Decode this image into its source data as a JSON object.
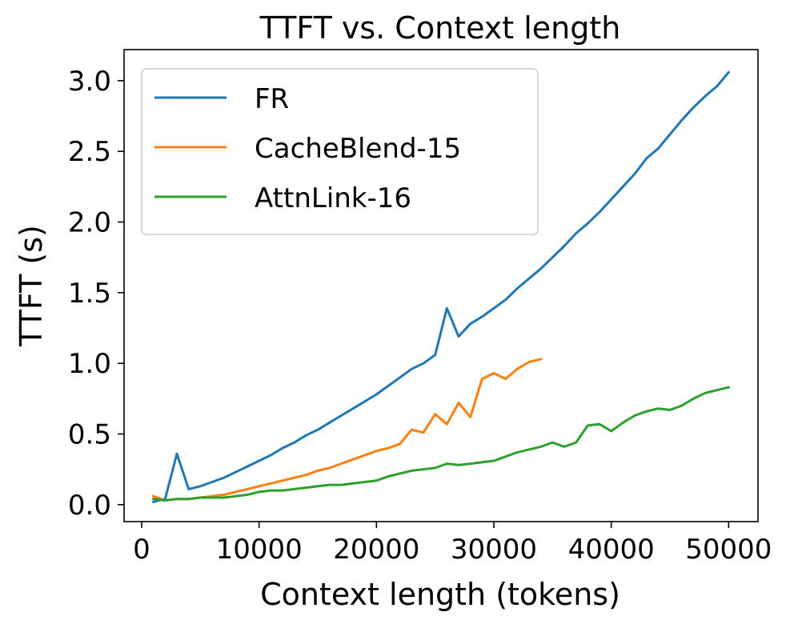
{
  "chart_data": {
    "type": "line",
    "title": "TTFT vs. Context length",
    "xlabel": "Context length (tokens)",
    "ylabel": "TTFT (s)",
    "xlim": [
      -1500,
      52500
    ],
    "ylim": [
      -0.12,
      3.22
    ],
    "xticks": [
      0,
      10000,
      20000,
      30000,
      40000,
      50000
    ],
    "xtick_labels": [
      "0",
      "10000",
      "20000",
      "30000",
      "40000",
      "50000"
    ],
    "yticks": [
      0.0,
      0.5,
      1.0,
      1.5,
      2.0,
      2.5,
      3.0
    ],
    "ytick_labels": [
      "0.0",
      "0.5",
      "1.0",
      "1.5",
      "2.0",
      "2.5",
      "3.0"
    ],
    "grid": false,
    "legend_position": "upper-left",
    "series": [
      {
        "name": "FR",
        "color": "#1f77b4",
        "points": [
          [
            1000,
            0.02
          ],
          [
            2000,
            0.04
          ],
          [
            3000,
            0.36
          ],
          [
            4000,
            0.11
          ],
          [
            5000,
            0.13
          ],
          [
            6000,
            0.16
          ],
          [
            7000,
            0.19
          ],
          [
            8000,
            0.23
          ],
          [
            9000,
            0.27
          ],
          [
            10000,
            0.31
          ],
          [
            11000,
            0.35
          ],
          [
            12000,
            0.4
          ],
          [
            13000,
            0.44
          ],
          [
            14000,
            0.49
          ],
          [
            15000,
            0.53
          ],
          [
            16000,
            0.58
          ],
          [
            17000,
            0.63
          ],
          [
            18000,
            0.68
          ],
          [
            19000,
            0.73
          ],
          [
            20000,
            0.78
          ],
          [
            21000,
            0.84
          ],
          [
            22000,
            0.9
          ],
          [
            23000,
            0.96
          ],
          [
            24000,
            1.0
          ],
          [
            25000,
            1.06
          ],
          [
            26000,
            1.39
          ],
          [
            27000,
            1.19
          ],
          [
            28000,
            1.28
          ],
          [
            29000,
            1.33
          ],
          [
            30000,
            1.39
          ],
          [
            31000,
            1.45
          ],
          [
            32000,
            1.53
          ],
          [
            33000,
            1.6
          ],
          [
            34000,
            1.67
          ],
          [
            35000,
            1.75
          ],
          [
            36000,
            1.83
          ],
          [
            37000,
            1.92
          ],
          [
            38000,
            1.99
          ],
          [
            39000,
            2.07
          ],
          [
            40000,
            2.16
          ],
          [
            41000,
            2.25
          ],
          [
            42000,
            2.34
          ],
          [
            43000,
            2.45
          ],
          [
            44000,
            2.52
          ],
          [
            45000,
            2.62
          ],
          [
            46000,
            2.72
          ],
          [
            47000,
            2.81
          ],
          [
            48000,
            2.89
          ],
          [
            49000,
            2.96
          ],
          [
            50000,
            3.06
          ]
        ]
      },
      {
        "name": "CacheBlend-15",
        "color": "#ff7f0e",
        "points": [
          [
            1000,
            0.06
          ],
          [
            2000,
            0.03
          ],
          [
            3000,
            0.04
          ],
          [
            4000,
            0.04
          ],
          [
            5000,
            0.05
          ],
          [
            6000,
            0.06
          ],
          [
            7000,
            0.07
          ],
          [
            8000,
            0.09
          ],
          [
            9000,
            0.11
          ],
          [
            10000,
            0.13
          ],
          [
            11000,
            0.15
          ],
          [
            12000,
            0.17
          ],
          [
            13000,
            0.19
          ],
          [
            14000,
            0.21
          ],
          [
            15000,
            0.24
          ],
          [
            16000,
            0.26
          ],
          [
            17000,
            0.29
          ],
          [
            18000,
            0.32
          ],
          [
            19000,
            0.35
          ],
          [
            20000,
            0.38
          ],
          [
            21000,
            0.4
          ],
          [
            22000,
            0.43
          ],
          [
            23000,
            0.53
          ],
          [
            24000,
            0.51
          ],
          [
            25000,
            0.64
          ],
          [
            26000,
            0.57
          ],
          [
            27000,
            0.72
          ],
          [
            28000,
            0.62
          ],
          [
            29000,
            0.89
          ],
          [
            30000,
            0.93
          ],
          [
            31000,
            0.89
          ],
          [
            32000,
            0.96
          ],
          [
            33000,
            1.01
          ],
          [
            34000,
            1.03
          ]
        ]
      },
      {
        "name": "AttnLink-16",
        "color": "#2ca02c",
        "points": [
          [
            1000,
            0.04
          ],
          [
            2000,
            0.03
          ],
          [
            3000,
            0.04
          ],
          [
            4000,
            0.04
          ],
          [
            5000,
            0.05
          ],
          [
            6000,
            0.05
          ],
          [
            7000,
            0.05
          ],
          [
            8000,
            0.06
          ],
          [
            9000,
            0.07
          ],
          [
            10000,
            0.09
          ],
          [
            11000,
            0.1
          ],
          [
            12000,
            0.1
          ],
          [
            13000,
            0.11
          ],
          [
            14000,
            0.12
          ],
          [
            15000,
            0.13
          ],
          [
            16000,
            0.14
          ],
          [
            17000,
            0.14
          ],
          [
            18000,
            0.15
          ],
          [
            19000,
            0.16
          ],
          [
            20000,
            0.17
          ],
          [
            21000,
            0.2
          ],
          [
            22000,
            0.22
          ],
          [
            23000,
            0.24
          ],
          [
            24000,
            0.25
          ],
          [
            25000,
            0.26
          ],
          [
            26000,
            0.29
          ],
          [
            27000,
            0.28
          ],
          [
            28000,
            0.29
          ],
          [
            29000,
            0.3
          ],
          [
            30000,
            0.31
          ],
          [
            31000,
            0.34
          ],
          [
            32000,
            0.37
          ],
          [
            33000,
            0.39
          ],
          [
            34000,
            0.41
          ],
          [
            35000,
            0.44
          ],
          [
            36000,
            0.41
          ],
          [
            37000,
            0.44
          ],
          [
            38000,
            0.56
          ],
          [
            39000,
            0.57
          ],
          [
            40000,
            0.52
          ],
          [
            41000,
            0.58
          ],
          [
            42000,
            0.63
          ],
          [
            43000,
            0.66
          ],
          [
            44000,
            0.68
          ],
          [
            45000,
            0.67
          ],
          [
            46000,
            0.7
          ],
          [
            47000,
            0.75
          ],
          [
            48000,
            0.79
          ],
          [
            49000,
            0.81
          ],
          [
            50000,
            0.83
          ]
        ]
      }
    ]
  }
}
